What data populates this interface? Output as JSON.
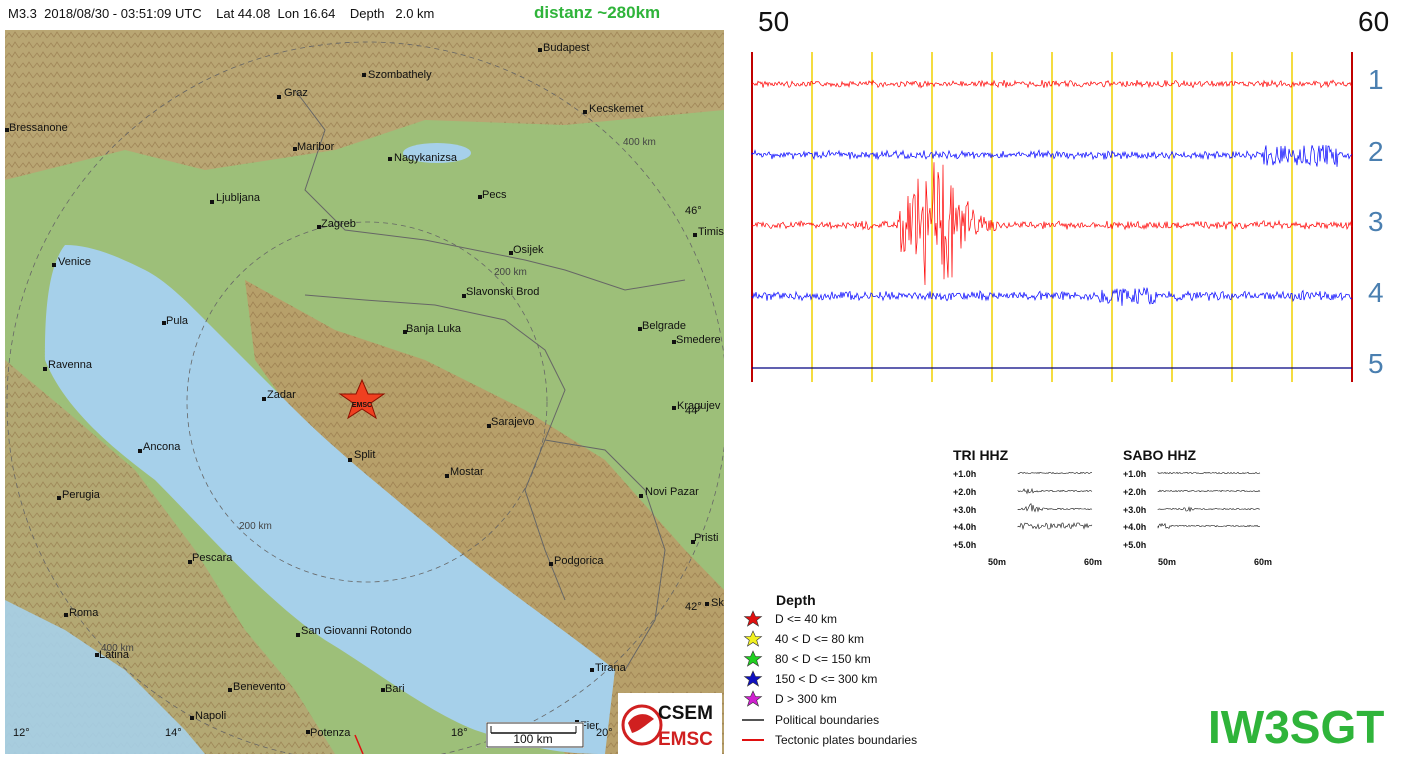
{
  "header": {
    "event_info": "M3.3  2018/08/30 - 03:51:09 UTC    Lat 44.08  Lon 16.64    Depth   2.0 km",
    "distance": "distanz ~280km"
  },
  "map": {
    "cities": [
      {
        "name": "Budapest"
      },
      {
        "name": "Szombathely"
      },
      {
        "name": "Graz"
      },
      {
        "name": "Kecskemet"
      },
      {
        "name": "Bressanone"
      },
      {
        "name": "Maribor"
      },
      {
        "name": "Nagykanizsa"
      },
      {
        "name": "Ljubljana"
      },
      {
        "name": "Pecs"
      },
      {
        "name": "Zagreb"
      },
      {
        "name": "Timis"
      },
      {
        "name": "Osijek"
      },
      {
        "name": "Venice"
      },
      {
        "name": "Slavonski Brod"
      },
      {
        "name": "Pula"
      },
      {
        "name": "Banja Luka"
      },
      {
        "name": "Belgrade"
      },
      {
        "name": "Smedere"
      },
      {
        "name": "Ravenna"
      },
      {
        "name": "Zadar"
      },
      {
        "name": "Kragujev"
      },
      {
        "name": "Sarajevo"
      },
      {
        "name": "Ancona"
      },
      {
        "name": "Split"
      },
      {
        "name": "Mostar"
      },
      {
        "name": "Perugia"
      },
      {
        "name": "Novi Pazar"
      },
      {
        "name": "Pristi"
      },
      {
        "name": "Pescara"
      },
      {
        "name": "Podgorica"
      },
      {
        "name": "Roma"
      },
      {
        "name": "San Giovanni Rotondo"
      },
      {
        "name": "Latina"
      },
      {
        "name": "Tirana"
      },
      {
        "name": "Benevento"
      },
      {
        "name": "Bari"
      },
      {
        "name": "Napoli"
      },
      {
        "name": "Potenza"
      },
      {
        "name": "Fier"
      },
      {
        "name": "Sk"
      }
    ],
    "distance_rings": [
      "400 km",
      "200 km",
      "200 km",
      "400 km"
    ],
    "lat_labels": [
      "46°",
      "44°",
      "42°"
    ],
    "lon_labels": [
      "12°",
      "14°",
      "18°",
      "20°"
    ],
    "epicenter_label": "EMSC",
    "scale_label": "100 km",
    "logo_top": "CSEM",
    "logo_bottom": "EMSC"
  },
  "seismogram": {
    "axis_start": "50",
    "axis_end": "60",
    "rows": [
      "1",
      "2",
      "3",
      "4",
      "5"
    ],
    "colors": {
      "red": "#ff0000",
      "blue": "#0000ff",
      "grid": "#f0d000",
      "border": "#c00000"
    }
  },
  "mini_panels": [
    {
      "title": "TRI HHZ",
      "rows": [
        "+1.0h",
        "+2.0h",
        "+3.0h",
        "+4.0h",
        "+5.0h"
      ],
      "x_ticks": [
        "50m",
        "60m"
      ]
    },
    {
      "title": "SABO HHZ",
      "rows": [
        "+1.0h",
        "+2.0h",
        "+3.0h",
        "+4.0h",
        "+5.0h"
      ],
      "x_ticks": [
        "50m",
        "60m"
      ]
    }
  ],
  "legend": {
    "title": "Depth",
    "items": [
      {
        "label": "D <= 40 km",
        "color": "#e01010",
        "icon": "star-icon"
      },
      {
        "label": "40 < D <= 80 km",
        "color": "#f0f020",
        "icon": "star-icon"
      },
      {
        "label": "80 < D <= 150 km",
        "color": "#20d020",
        "icon": "star-icon"
      },
      {
        "label": "150 < D <= 300 km",
        "color": "#1010c0",
        "icon": "star-icon"
      },
      {
        "label": "D > 300 km",
        "color": "#d020d0",
        "icon": "star-icon"
      },
      {
        "label": "Political boundaries",
        "color": "#555555",
        "icon": "line-icon"
      },
      {
        "label": "Tectonic plates boundaries",
        "color": "#e01010",
        "icon": "line-icon"
      }
    ]
  },
  "callsign": "IW3SGT"
}
